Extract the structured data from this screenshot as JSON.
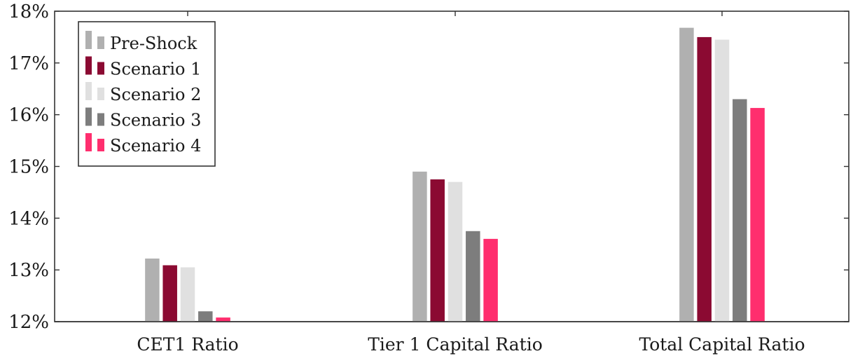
{
  "chart_data": {
    "type": "bar",
    "categories": [
      "CET1 Ratio",
      "Tier 1 Capital Ratio",
      "Total Capital Ratio"
    ],
    "series": [
      {
        "name": "Pre-Shock",
        "color": "#b0b0b0",
        "values": [
          13.22,
          14.9,
          17.68
        ]
      },
      {
        "name": "Scenario 1",
        "color": "#8b0a32",
        "values": [
          13.09,
          14.75,
          17.5
        ]
      },
      {
        "name": "Scenario 2",
        "color": "#e0e0e0",
        "values": [
          13.05,
          14.7,
          17.45
        ]
      },
      {
        "name": "Scenario 3",
        "color": "#7d7d7d",
        "values": [
          12.2,
          13.75,
          16.3
        ]
      },
      {
        "name": "Scenario 4",
        "color": "#ff2e6e",
        "values": [
          12.08,
          13.6,
          16.13
        ]
      }
    ],
    "y_ticks": [
      "12%",
      "13%",
      "14%",
      "15%",
      "16%",
      "17%",
      "18%"
    ],
    "ylim": [
      12,
      18
    ],
    "legend_position": "top-left",
    "grid": false
  }
}
